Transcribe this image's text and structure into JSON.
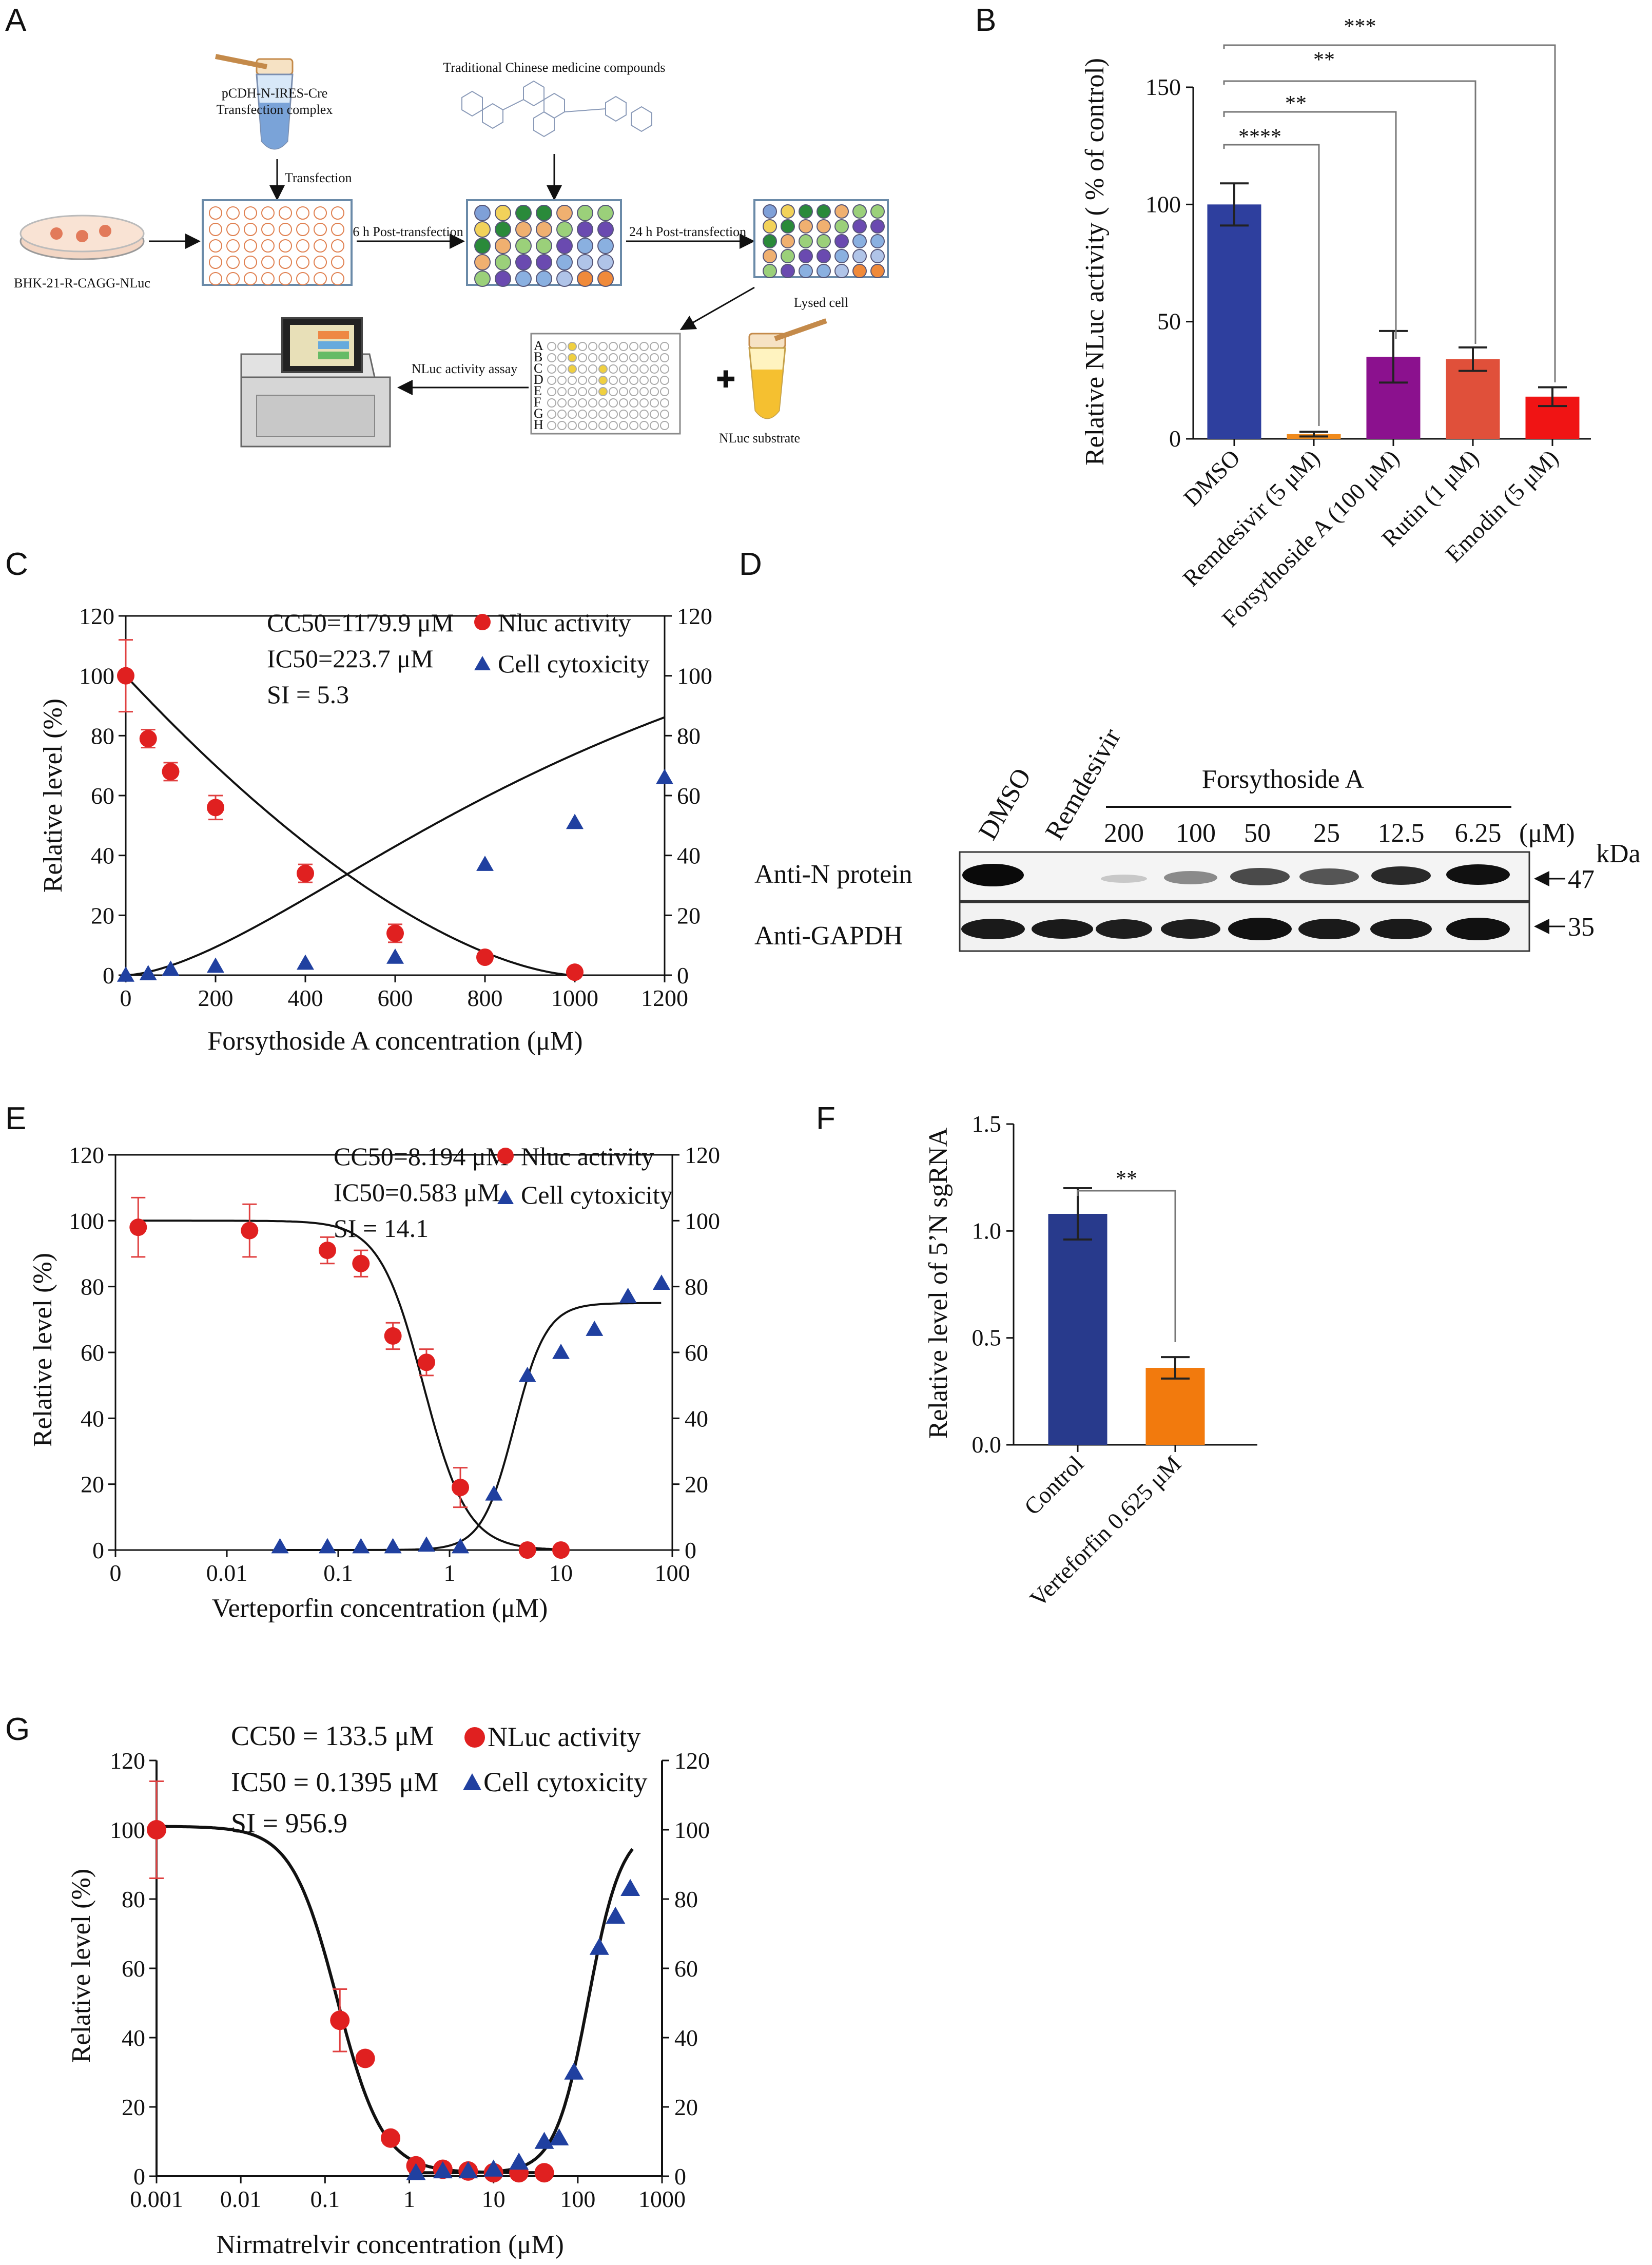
{
  "panel_labels": [
    "A",
    "B",
    "C",
    "D",
    "E",
    "F",
    "G"
  ],
  "panel_a": {
    "transfection_complex": [
      "pCDH-N-IRES-Cre",
      "Transfection complex"
    ],
    "compounds_title": "Traditional Chinese medicine compounds",
    "cell_line": "BHK-21-R-CAGG-NLuc",
    "step_transfection": "Transfection",
    "step_6h": "6 h Post-transfection",
    "step_24h": "24 h Post-transfection",
    "lysed": "Lysed cell",
    "assay": "NLuc activity assay",
    "substrate": "NLuc substrate",
    "row_letters": [
      "A",
      "B",
      "C",
      "D",
      "E",
      "F",
      "G",
      "H"
    ]
  },
  "panel_b": {
    "ylabel": "Relative NLuc activity ( % of control)",
    "significance": [
      "****",
      "**",
      "**",
      "***"
    ]
  },
  "panel_d": {
    "lanes": [
      "DMSO",
      "Remdesivir"
    ],
    "treatment": "Forsythoside A",
    "concentrations": [
      "200",
      "100",
      "50",
      "25",
      "12.5",
      "6.25"
    ],
    "unit": "(μM)",
    "rows": [
      "Anti-N protein",
      "Anti-GAPDH"
    ],
    "kda_label": "kDa",
    "markers": [
      "47",
      "35"
    ]
  },
  "panel_f": {
    "significance": "**"
  },
  "chart_data": [
    {
      "panel": "B",
      "type": "bar",
      "categories": [
        "DMSO",
        "Remdesivir (5 μM)",
        "Forsythoside A (100 μM)",
        "Rutin (1 μM)",
        "Emodin (5 μM)"
      ],
      "values": [
        100,
        2,
        35,
        34,
        18
      ],
      "errors": [
        9,
        1,
        11,
        5,
        4
      ],
      "colors": [
        "#2e3f9e",
        "#f08a1c",
        "#8b118e",
        "#e0503a",
        "#f01414"
      ],
      "ylabel": "Relative NLuc activity ( % of control)",
      "ylim": [
        0,
        150
      ],
      "yticks": [
        "0",
        "50",
        "100",
        "150"
      ]
    },
    {
      "panel": "C",
      "type": "scatter",
      "xlabel": "Forsythoside A concentration (μM)",
      "ylabel": "Relative level (%)",
      "xlim": [
        0,
        1200
      ],
      "ylim": [
        0,
        120
      ],
      "xticks": [
        "0",
        "200",
        "400",
        "600",
        "800",
        "1000",
        "1200"
      ],
      "yticks": [
        "0",
        "20",
        "40",
        "60",
        "80",
        "100",
        "120"
      ],
      "annotations": [
        "CC50=1179.9 μM",
        "IC50=223.7 μM",
        "SI = 5.3"
      ],
      "series": [
        {
          "name": "Nluc activity",
          "marker": "circle",
          "color": "#e02020",
          "x": [
            0,
            50,
            100,
            200,
            400,
            600,
            800,
            1000
          ],
          "y": [
            100,
            79,
            68,
            56,
            34,
            14,
            6,
            1
          ],
          "err": [
            12,
            3,
            3,
            4,
            3,
            3,
            0,
            0
          ]
        },
        {
          "name": "Cell cytoxicity",
          "marker": "triangle",
          "color": "#2040a0",
          "x": [
            0,
            50,
            100,
            200,
            400,
            600,
            800,
            1000,
            1200
          ],
          "y": [
            0,
            0.5,
            2,
            3,
            4,
            6,
            37,
            51,
            66
          ]
        }
      ]
    },
    {
      "panel": "E",
      "type": "scatter",
      "xlabel": "Verteporfin concentration (μM)",
      "ylabel": "Relative level (%)",
      "xscale": "log",
      "xticks": [
        "0",
        "0.01",
        "0.1",
        "1",
        "10",
        "100"
      ],
      "yticks": [
        "0",
        "20",
        "40",
        "60",
        "80",
        "100",
        "120"
      ],
      "ylim": [
        0,
        120
      ],
      "annotations": [
        "CC50=8.194 μM",
        "IC50=0.583 μM",
        "SI = 14.1"
      ],
      "series": [
        {
          "name": "Nluc activity",
          "marker": "circle",
          "color": "#e02020",
          "x": [
            0.0016,
            0.016,
            0.08,
            0.16,
            0.31,
            0.62,
            1.25,
            5,
            10
          ],
          "y": [
            98,
            97,
            91,
            87,
            65,
            57,
            19,
            0,
            0
          ],
          "err": [
            9,
            8,
            4,
            4,
            4,
            4,
            6,
            0,
            0
          ]
        },
        {
          "name": "Cell cytoxicity",
          "marker": "triangle",
          "color": "#2040a0",
          "x": [
            0.03,
            0.08,
            0.16,
            0.31,
            0.62,
            1.25,
            2.5,
            5,
            10,
            20,
            40,
            80
          ],
          "y": [
            1,
            1,
            1,
            1,
            1.5,
            1,
            17,
            53,
            60,
            67,
            77,
            81
          ]
        }
      ]
    },
    {
      "panel": "F",
      "type": "bar",
      "categories": [
        "Control",
        "Verteforfin 0.625 μM"
      ],
      "values": [
        1.08,
        0.36
      ],
      "errors": [
        0.12,
        0.05
      ],
      "colors": [
        "#283a8c",
        "#f27a0d"
      ],
      "ylabel": "Relative level of 5’N sgRNA",
      "ylim": [
        0,
        1.5
      ],
      "yticks": [
        "0.0",
        "0.5",
        "1.0",
        "1.5"
      ]
    },
    {
      "panel": "G",
      "type": "scatter",
      "xlabel": "Nirmatrelvir concentration  (μM)",
      "ylabel": "Relative level  (%)",
      "xscale": "log",
      "xticks": [
        "0.001",
        "0.01",
        "0.1",
        "1",
        "10",
        "100",
        "1000"
      ],
      "yticks": [
        "0",
        "20",
        "40",
        "60",
        "80",
        "100",
        "120"
      ],
      "ylim": [
        0,
        120
      ],
      "annotations": [
        "CC50 = 133.5 μM",
        "IC50 = 0.1395 μM",
        "SI = 956.9"
      ],
      "series": [
        {
          "name": "NLuc activity",
          "marker": "circle",
          "color": "#e02020",
          "x": [
            0.001,
            0.15,
            0.3,
            0.6,
            1.2,
            2.5,
            5,
            10,
            20,
            40
          ],
          "y": [
            100,
            45,
            34,
            11,
            3,
            2,
            1.5,
            1,
            1,
            1
          ],
          "err": [
            14,
            9,
            0,
            0,
            0,
            0,
            0,
            0,
            0,
            0
          ]
        },
        {
          "name": "Cell cytoxicity",
          "marker": "triangle",
          "color": "#2040a0",
          "x": [
            1.2,
            2.5,
            5,
            10,
            20,
            40,
            60,
            90,
            180,
            280,
            420
          ],
          "y": [
            1,
            1.5,
            1.5,
            2,
            4,
            10,
            11,
            30,
            66,
            75,
            83
          ]
        }
      ]
    }
  ]
}
